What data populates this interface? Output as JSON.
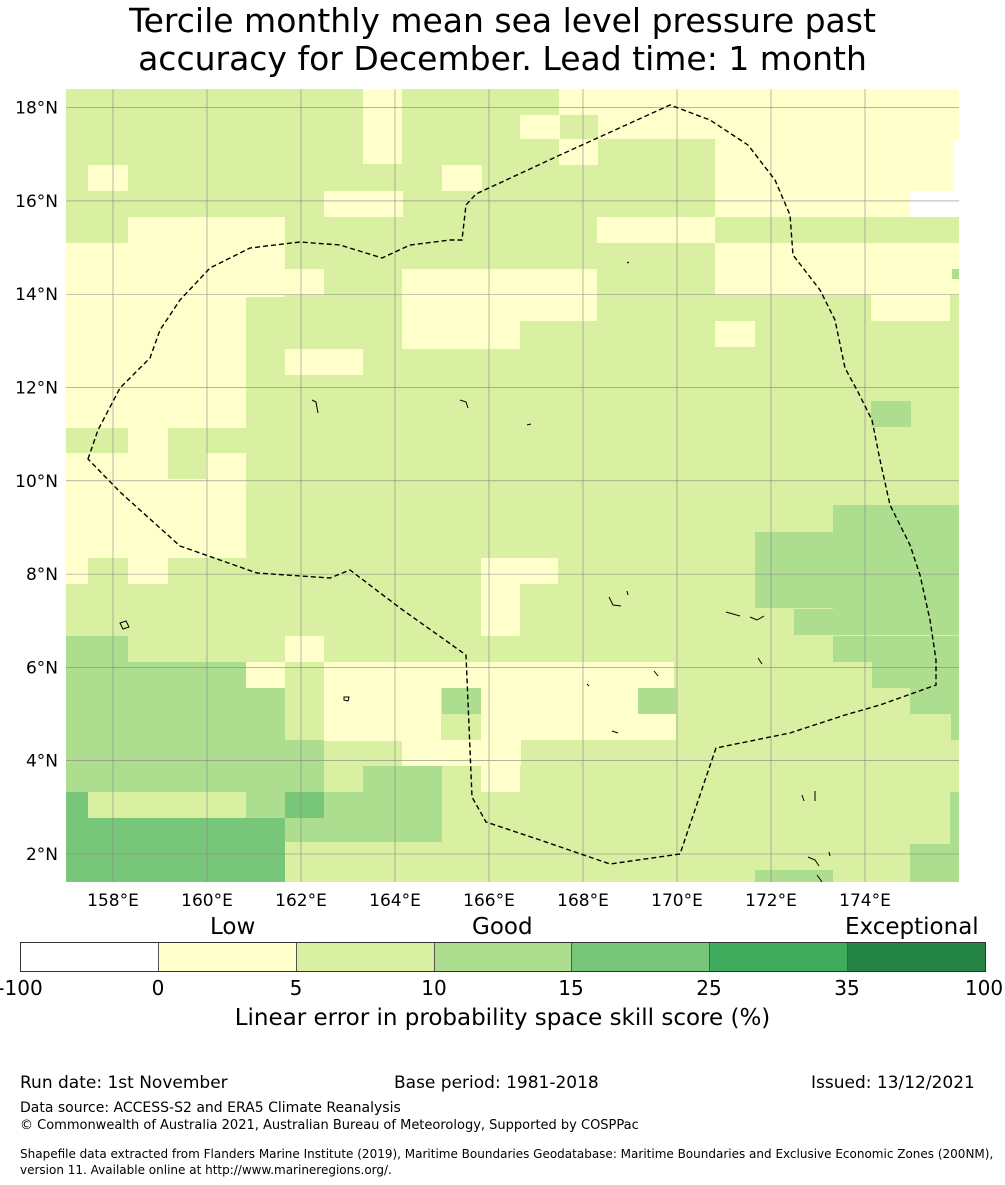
{
  "title": {
    "line1": "Tercile monthly mean sea level pressure past",
    "line2": "accuracy for December. Lead time: 1 month"
  },
  "map": {
    "lon_labels": [
      "158°E",
      "160°E",
      "162°E",
      "164°E",
      "166°E",
      "168°E",
      "170°E",
      "172°E",
      "174°E"
    ],
    "lat_labels": [
      "18°N",
      "16°N",
      "14°N",
      "12°N",
      "10°N",
      "8°N",
      "6°N",
      "4°N",
      "2°N"
    ],
    "lon_values": [
      158,
      160,
      162,
      164,
      166,
      168,
      170,
      172,
      174
    ],
    "lat_values": [
      18,
      16,
      14,
      12,
      10,
      8,
      6,
      4,
      2
    ],
    "lon_range": [
      157,
      176
    ],
    "lat_range": [
      1.4,
      18.4
    ],
    "boundary_line": "dashed",
    "gridlines": true,
    "category_colors": {
      "white": "#ffffff",
      "low": "#ffffcc",
      "good5": "#d9f0a3",
      "good10": "#addd8e",
      "good15": "#78c679",
      "exc25": "#41ab5d",
      "exc35": "#238443"
    }
  },
  "colorbar": {
    "categories": [
      "Low",
      "Good",
      "Exceptional"
    ],
    "ticks": [
      "-100",
      "0",
      "5",
      "10",
      "15",
      "25",
      "35",
      "100"
    ],
    "colors": [
      "#ffffff",
      "#ffffcc",
      "#d9f0a3",
      "#addd8e",
      "#78c679",
      "#41ab5d",
      "#238443"
    ],
    "label": "Linear error in probability space skill score (%)"
  },
  "footer": {
    "run_date": "Run date: 1st November",
    "base_period": "Base period: 1981-2018",
    "issued": "Issued: 13/12/2021",
    "data_source": "Data source: ACCESS-S2 and ERA5 Climate Reanalysis",
    "copyright": "© Commonwealth of Australia 2021, Australian Bureau of Meteorology, Supported by COSPPac",
    "shapefile": "Shapefile data extracted from Flanders Marine Institute (2019), Maritime Boundaries Geodatabase: Maritime Boundaries and Exclusive Economic Zones (200NM), version 11. Available online at http://www.marineregions.org/."
  }
}
